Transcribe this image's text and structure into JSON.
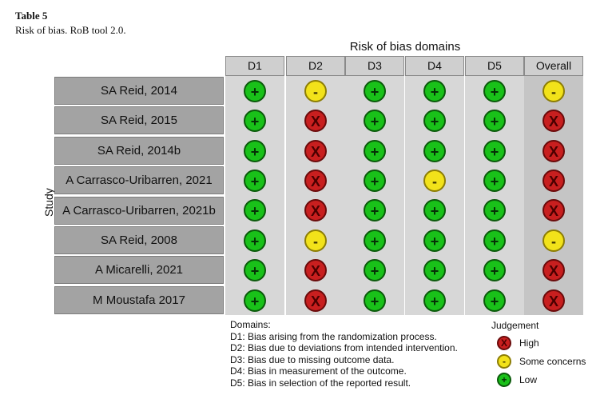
{
  "caption": {
    "title": "Table 5",
    "subtitle": "Risk of bias. RoB tool 2.0."
  },
  "header": {
    "domains_title": "Risk of bias domains",
    "study_axis": "Study"
  },
  "columns": [
    "D1",
    "D2",
    "D3",
    "D4",
    "D5",
    "Overall"
  ],
  "rows": [
    {
      "study": "SA Reid, 2014",
      "judgements": [
        "low",
        "some",
        "low",
        "low",
        "low",
        "some"
      ]
    },
    {
      "study": "SA Reid, 2015",
      "judgements": [
        "low",
        "high",
        "low",
        "low",
        "low",
        "high"
      ]
    },
    {
      "study": "SA Reid, 2014b",
      "judgements": [
        "low",
        "high",
        "low",
        "low",
        "low",
        "high"
      ]
    },
    {
      "study": "A Carrasco-Uribarren, 2021",
      "judgements": [
        "low",
        "high",
        "low",
        "some",
        "low",
        "high"
      ]
    },
    {
      "study": "A Carrasco-Uribarren, 2021b",
      "judgements": [
        "low",
        "high",
        "low",
        "low",
        "low",
        "high"
      ]
    },
    {
      "study": "SA Reid, 2008",
      "judgements": [
        "low",
        "some",
        "low",
        "low",
        "low",
        "some"
      ]
    },
    {
      "study": "A Micarelli, 2021",
      "judgements": [
        "low",
        "high",
        "low",
        "low",
        "low",
        "high"
      ]
    },
    {
      "study": "M Moustafa 2017",
      "judgements": [
        "low",
        "high",
        "low",
        "low",
        "low",
        "high"
      ]
    }
  ],
  "symbols": {
    "low": "+",
    "some": "-",
    "high": "X"
  },
  "legend": {
    "domains_title": "Domains:",
    "domains": [
      "D1: Bias arising from the randomization process.",
      "D2: Bias due to deviations from intended intervention.",
      "D3: Bias due to missing outcome data.",
      "D4: Bias in measurement of the outcome.",
      "D5: Bias in selection of the reported result."
    ],
    "judgement_title": "Judgement",
    "judgements": [
      {
        "key": "high",
        "label": "High"
      },
      {
        "key": "some",
        "label": "Some concerns"
      },
      {
        "key": "low",
        "label": "Low"
      }
    ]
  },
  "colors": {
    "low": "#19c119",
    "some": "#f2e21a",
    "high": "#c81f1f",
    "header_bg": "#cfcfcf",
    "row_label_bg": "#a3a3a3"
  }
}
